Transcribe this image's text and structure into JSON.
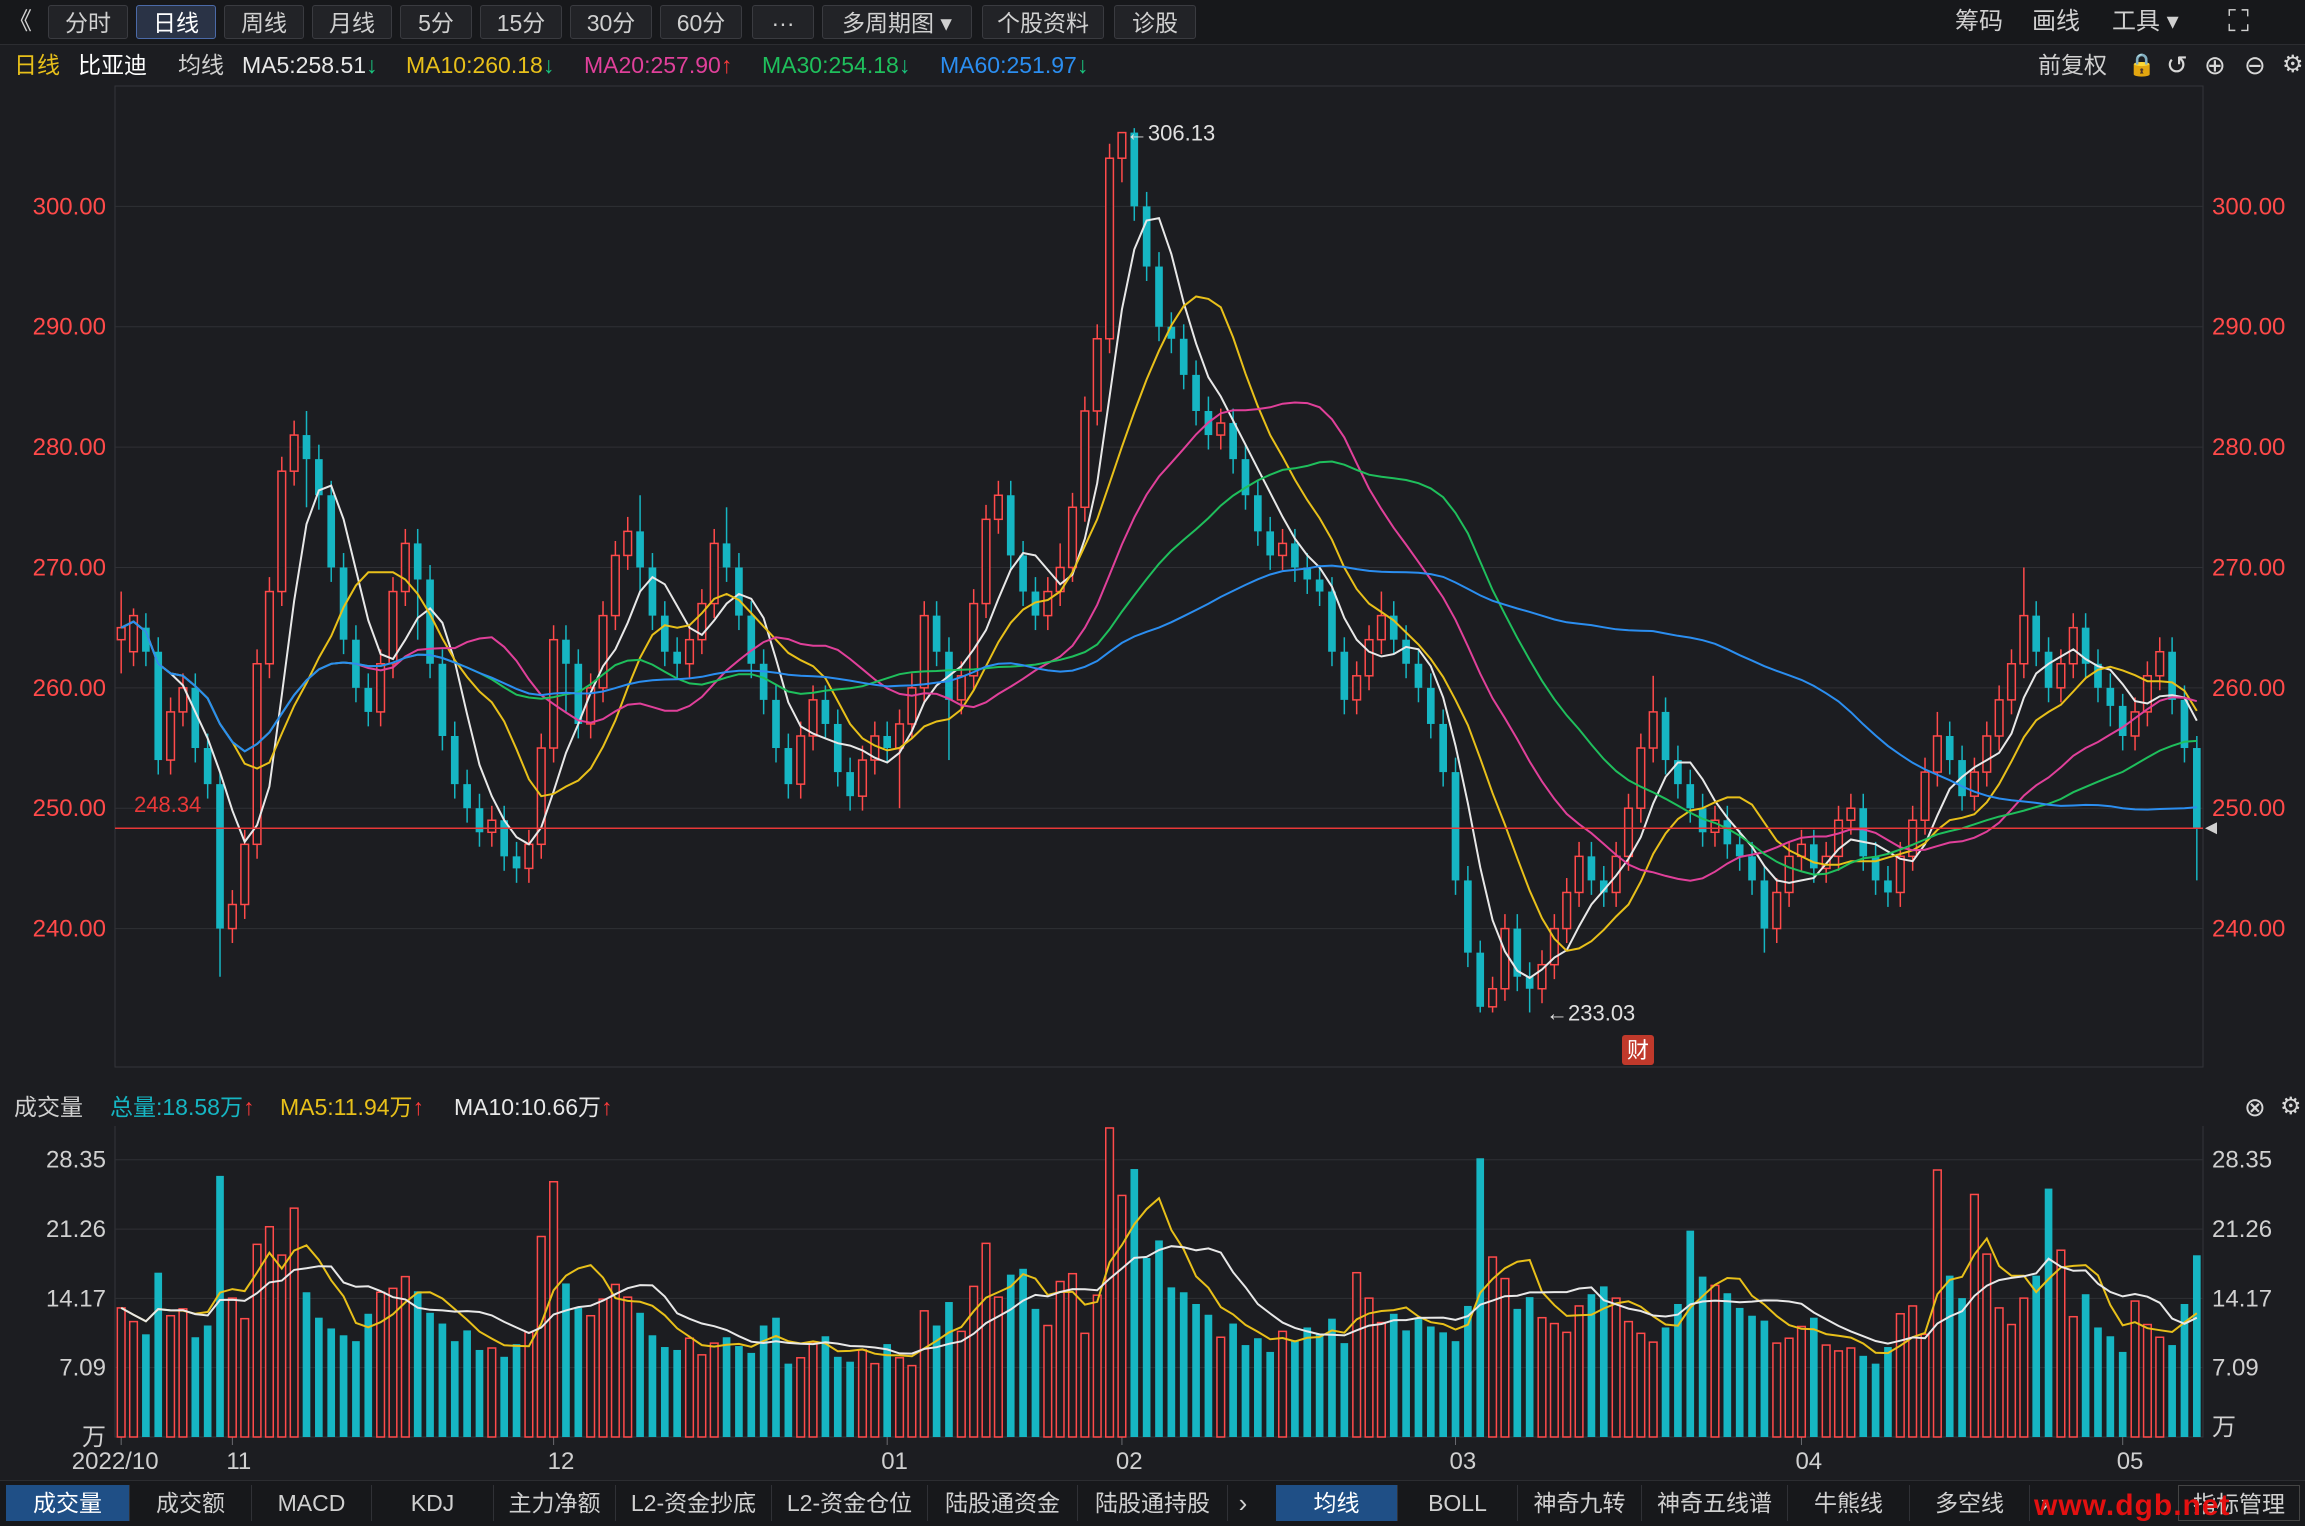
{
  "toolbar": {
    "back_glyph": "《",
    "tabs": [
      "分时",
      "日线",
      "周线",
      "月线",
      "5分",
      "15分",
      "30分",
      "60分",
      "···",
      "多周期图 ▾",
      "个股资料",
      "诊股"
    ],
    "active_tab": "日线",
    "right": [
      "筹码",
      "画线",
      "工具 ▾"
    ],
    "expand_glyph": "⛶"
  },
  "info": {
    "period": "日线",
    "stock_name": "比亚迪",
    "indicator": "均线",
    "ma": [
      {
        "label": "MA5:258.51",
        "arrow": "↓",
        "color": "#e8e8e8",
        "arrow_color": "#19c37d"
      },
      {
        "label": "MA10:260.18",
        "arrow": "↓",
        "color": "#e8c01a",
        "arrow_color": "#19c37d"
      },
      {
        "label": "MA20:257.90",
        "arrow": "↑",
        "color": "#e0409a",
        "arrow_color": "#ff3b3b"
      },
      {
        "label": "MA30:254.18",
        "arrow": "↓",
        "color": "#1fbf5c",
        "arrow_color": "#19c37d"
      },
      {
        "label": "MA60:251.97",
        "arrow": "↓",
        "color": "#2b8ef0",
        "arrow_color": "#19c37d"
      }
    ],
    "adjust": "前复权"
  },
  "volume_info": {
    "title": "成交量",
    "total": "总量:18.58万",
    "total_arrow": "↑",
    "ma5": "MA5:11.94万",
    "ma5_arrow": "↑",
    "ma10": "MA10:10.66万",
    "ma10_arrow": "↑"
  },
  "colors": {
    "up": "#ff4a4a",
    "down": "#16b6c3",
    "ma5": "#e8e8e8",
    "ma10": "#e8c01a",
    "ma20": "#e0409a",
    "ma30": "#1fbf5c",
    "ma60": "#2b8ef0",
    "price_axis": "#ff4a4a",
    "grid": "#2f3035"
  },
  "bottom_tabs_left": [
    "成交量",
    "成交额",
    "MACD",
    "KDJ",
    "主力净额",
    "L2-资金抄底",
    "L2-资金仓位",
    "陆股通资金",
    "陆股通持股"
  ],
  "bottom_tabs_right": [
    "均线",
    "BOLL",
    "神奇九转",
    "神奇五线谱",
    "牛熊线",
    "多空线"
  ],
  "bottom_active_left": "成交量",
  "bottom_active_right": "均线",
  "indicator_manage": "指标管理",
  "watermark": "www.dgb.net",
  "badge": "财",
  "chart_data": {
    "type": "candlestick",
    "price_axis": {
      "ylim": [
        228.5,
        310
      ],
      "ticks": [
        "300.00",
        "290.00",
        "280.00",
        "270.00",
        "260.00",
        "250.00",
        "240.00"
      ]
    },
    "volume_axis": {
      "ylim": [
        0,
        31.8
      ],
      "ticks": [
        "28.35",
        "21.26",
        "14.17",
        "7.09"
      ],
      "unit": "万"
    },
    "date_labels": [
      {
        "label": "2022/10",
        "index": 0
      },
      {
        "label": "11",
        "index": 9
      },
      {
        "label": "12",
        "index": 35
      },
      {
        "label": "01",
        "index": 62
      },
      {
        "label": "02",
        "index": 81
      },
      {
        "label": "03",
        "index": 108
      },
      {
        "label": "04",
        "index": 136
      },
      {
        "label": "05",
        "index": 162
      }
    ],
    "annotations": [
      {
        "label": "←306.13",
        "index": 81,
        "value": 306.13
      },
      {
        "label": "←233.03",
        "index": 115,
        "value": 233.03
      }
    ],
    "reference_line": {
      "label": "248.34",
      "value": 248.34
    },
    "candles": [
      [
        264.0,
        265.0,
        261.2,
        268.0
      ],
      [
        263.0,
        266.0,
        261.8,
        266.6
      ],
      [
        265.0,
        263.0,
        261.8,
        266.2
      ],
      [
        263.0,
        254.0,
        252.8,
        264.2
      ],
      [
        254.0,
        258.0,
        252.8,
        259.2
      ],
      [
        258.0,
        260.0,
        256.8,
        261.2
      ],
      [
        260.0,
        255.0,
        253.8,
        261.2
      ],
      [
        255.0,
        252.0,
        250.8,
        256.2
      ],
      [
        252.0,
        240.0,
        236.0,
        253.0
      ],
      [
        240.0,
        242.0,
        238.8,
        243.2
      ],
      [
        242.0,
        247.0,
        240.8,
        248.2
      ],
      [
        247.0,
        262.0,
        245.8,
        263.2
      ],
      [
        262.0,
        268.0,
        260.8,
        269.2
      ],
      [
        268.0,
        278.0,
        266.8,
        279.2
      ],
      [
        278.0,
        281.0,
        276.8,
        282.2
      ],
      [
        281.0,
        279.0,
        275.0,
        283.0
      ],
      [
        279.0,
        276.0,
        274.8,
        280.2
      ],
      [
        276.0,
        270.0,
        268.8,
        277.2
      ],
      [
        270.0,
        264.0,
        262.8,
        271.2
      ],
      [
        264.0,
        260.0,
        258.8,
        265.2
      ],
      [
        260.0,
        258.0,
        256.8,
        261.2
      ],
      [
        258.0,
        262.0,
        256.8,
        263.2
      ],
      [
        262.0,
        268.0,
        260.8,
        269.2
      ],
      [
        268.0,
        272.0,
        266.8,
        273.2
      ],
      [
        272.0,
        269.0,
        264.0,
        273.2
      ],
      [
        269.0,
        262.0,
        260.8,
        270.2
      ],
      [
        262.0,
        256.0,
        254.8,
        263.2
      ],
      [
        256.0,
        252.0,
        250.8,
        257.2
      ],
      [
        252.0,
        250.0,
        248.8,
        253.2
      ],
      [
        250.0,
        248.0,
        246.8,
        251.2
      ],
      [
        248.0,
        249.0,
        246.8,
        250.2
      ],
      [
        249.0,
        246.0,
        244.8,
        250.2
      ],
      [
        246.0,
        245.0,
        243.8,
        247.2
      ],
      [
        245.0,
        247.0,
        243.8,
        248.2
      ],
      [
        247.0,
        255.0,
        245.8,
        256.2
      ],
      [
        255.0,
        264.0,
        253.8,
        265.2
      ],
      [
        264.0,
        262.0,
        258.0,
        265.2
      ],
      [
        262.0,
        257.0,
        255.8,
        263.2
      ],
      [
        257.0,
        260.0,
        255.8,
        261.2
      ],
      [
        260.0,
        266.0,
        258.8,
        267.2
      ],
      [
        266.0,
        271.0,
        264.8,
        272.2
      ],
      [
        271.0,
        273.0,
        269.8,
        274.2
      ],
      [
        273.0,
        270.0,
        268.0,
        276.0
      ],
      [
        270.0,
        266.0,
        264.8,
        271.2
      ],
      [
        266.0,
        263.0,
        261.8,
        267.2
      ],
      [
        263.0,
        262.0,
        260.8,
        264.2
      ],
      [
        262.0,
        264.0,
        260.8,
        265.2
      ],
      [
        264.0,
        267.0,
        262.8,
        268.2
      ],
      [
        267.0,
        272.0,
        265.8,
        273.2
      ],
      [
        272.0,
        270.0,
        268.8,
        275.0
      ],
      [
        270.0,
        266.0,
        264.8,
        271.2
      ],
      [
        266.0,
        262.0,
        260.8,
        267.2
      ],
      [
        262.0,
        259.0,
        257.8,
        263.2
      ],
      [
        259.0,
        255.0,
        253.8,
        260.2
      ],
      [
        255.0,
        252.0,
        250.8,
        256.2
      ],
      [
        252.0,
        256.0,
        250.8,
        257.2
      ],
      [
        256.0,
        259.0,
        254.8,
        260.2
      ],
      [
        259.0,
        257.0,
        255.8,
        260.2
      ],
      [
        257.0,
        253.0,
        251.8,
        258.2
      ],
      [
        253.0,
        251.0,
        249.8,
        254.2
      ],
      [
        251.0,
        254.0,
        249.8,
        255.2
      ],
      [
        254.0,
        256.0,
        252.8,
        257.2
      ],
      [
        256.0,
        255.0,
        253.8,
        257.2
      ],
      [
        255.0,
        257.0,
        250.0,
        258.2
      ],
      [
        257.0,
        260.0,
        255.8,
        261.2
      ],
      [
        260.0,
        266.0,
        258.8,
        267.2
      ],
      [
        266.0,
        263.0,
        261.8,
        267.2
      ],
      [
        263.0,
        259.0,
        254.0,
        264.2
      ],
      [
        259.0,
        261.0,
        257.8,
        262.2
      ],
      [
        261.0,
        267.0,
        259.8,
        268.2
      ],
      [
        267.0,
        274.0,
        265.8,
        275.2
      ],
      [
        274.0,
        276.0,
        272.8,
        277.2
      ],
      [
        276.0,
        271.0,
        269.8,
        277.2
      ],
      [
        271.0,
        268.0,
        266.8,
        272.2
      ],
      [
        268.0,
        266.0,
        264.8,
        269.2
      ],
      [
        266.0,
        268.0,
        264.8,
        269.2
      ],
      [
        268.0,
        270.0,
        266.8,
        272.0
      ],
      [
        270.0,
        275.0,
        268.8,
        276.2
      ],
      [
        275.0,
        283.0,
        273.8,
        284.2
      ],
      [
        283.0,
        289.0,
        281.8,
        290.2
      ],
      [
        289.0,
        304.0,
        287.8,
        305.2
      ],
      [
        304.0,
        306.13,
        302.0,
        306.13
      ],
      [
        306.13,
        300.0,
        298.8,
        306.5
      ],
      [
        300.0,
        295.0,
        293.8,
        301.2
      ],
      [
        295.0,
        290.0,
        288.8,
        296.2
      ],
      [
        290.0,
        289.0,
        287.8,
        291.2
      ],
      [
        289.0,
        286.0,
        284.8,
        290.2
      ],
      [
        286.0,
        283.0,
        281.8,
        287.2
      ],
      [
        283.0,
        281.0,
        279.8,
        284.2
      ],
      [
        281.0,
        282.0,
        279.8,
        283.2
      ],
      [
        282.0,
        279.0,
        277.8,
        283.2
      ],
      [
        279.0,
        276.0,
        274.8,
        280.2
      ],
      [
        276.0,
        273.0,
        271.8,
        277.2
      ],
      [
        273.0,
        271.0,
        269.8,
        274.2
      ],
      [
        271.0,
        272.0,
        269.8,
        273.2
      ],
      [
        272.0,
        270.0,
        268.8,
        273.2
      ],
      [
        270.0,
        269.0,
        267.8,
        271.2
      ],
      [
        269.0,
        268.0,
        266.8,
        270.2
      ],
      [
        268.0,
        263.0,
        261.8,
        269.2
      ],
      [
        263.0,
        259.0,
        257.8,
        264.2
      ],
      [
        259.0,
        261.0,
        257.8,
        262.2
      ],
      [
        261.0,
        264.0,
        259.8,
        265.2
      ],
      [
        264.0,
        266.0,
        262.8,
        268.0
      ],
      [
        266.0,
        264.0,
        262.8,
        267.2
      ],
      [
        264.0,
        262.0,
        260.8,
        265.2
      ],
      [
        262.0,
        260.0,
        258.8,
        263.2
      ],
      [
        260.0,
        257.0,
        255.8,
        261.2
      ],
      [
        257.0,
        253.0,
        251.8,
        258.2
      ],
      [
        253.0,
        244.0,
        242.8,
        254.2
      ],
      [
        244.0,
        238.0,
        236.8,
        245.2
      ],
      [
        238.0,
        233.5,
        233.03,
        239.0
      ],
      [
        233.5,
        235.0,
        233.03,
        236.0
      ],
      [
        235.0,
        240.0,
        234.0,
        241.2
      ],
      [
        240.0,
        236.0,
        234.8,
        241.2
      ],
      [
        236.0,
        235.0,
        233.03,
        237.2
      ],
      [
        235.0,
        237.0,
        233.8,
        238.2
      ],
      [
        237.0,
        240.0,
        235.8,
        241.2
      ],
      [
        240.0,
        243.0,
        238.8,
        244.2
      ],
      [
        243.0,
        246.0,
        241.8,
        247.2
      ],
      [
        246.0,
        244.0,
        242.8,
        247.2
      ],
      [
        244.0,
        243.0,
        241.8,
        245.2
      ],
      [
        243.0,
        246.0,
        241.8,
        247.2
      ],
      [
        246.0,
        250.0,
        244.8,
        251.2
      ],
      [
        250.0,
        255.0,
        248.8,
        256.2
      ],
      [
        255.0,
        258.0,
        253.8,
        261.0
      ],
      [
        258.0,
        254.0,
        252.8,
        259.2
      ],
      [
        254.0,
        252.0,
        250.8,
        255.2
      ],
      [
        252.0,
        250.0,
        248.8,
        253.2
      ],
      [
        250.0,
        248.0,
        246.8,
        251.2
      ],
      [
        248.0,
        249.0,
        246.8,
        250.2
      ],
      [
        249.0,
        247.0,
        245.8,
        250.2
      ],
      [
        247.0,
        246.0,
        244.8,
        248.2
      ],
      [
        246.0,
        244.0,
        242.8,
        247.2
      ],
      [
        244.0,
        240.0,
        238.0,
        245.2
      ],
      [
        240.0,
        243.0,
        238.8,
        244.2
      ],
      [
        243.0,
        246.0,
        241.8,
        247.2
      ],
      [
        246.0,
        247.0,
        244.8,
        248.2
      ],
      [
        247.0,
        245.0,
        243.8,
        248.2
      ],
      [
        245.0,
        246.0,
        243.8,
        247.2
      ],
      [
        246.0,
        249.0,
        244.8,
        250.2
      ],
      [
        249.0,
        250.0,
        247.8,
        251.2
      ],
      [
        250.0,
        246.0,
        244.8,
        251.2
      ],
      [
        246.0,
        244.0,
        242.8,
        247.2
      ],
      [
        244.0,
        243.0,
        241.8,
        245.2
      ],
      [
        243.0,
        246.0,
        241.8,
        247.2
      ],
      [
        246.0,
        249.0,
        244.8,
        250.2
      ],
      [
        249.0,
        253.0,
        247.8,
        254.2
      ],
      [
        253.0,
        256.0,
        251.8,
        258.0
      ],
      [
        256.0,
        254.0,
        252.8,
        257.2
      ],
      [
        254.0,
        251.0,
        249.8,
        255.2
      ],
      [
        251.0,
        253.0,
        249.8,
        254.2
      ],
      [
        253.0,
        256.0,
        251.8,
        257.2
      ],
      [
        256.0,
        259.0,
        254.8,
        260.2
      ],
      [
        259.0,
        262.0,
        257.8,
        263.2
      ],
      [
        262.0,
        266.0,
        260.8,
        270.0
      ],
      [
        266.0,
        263.0,
        261.8,
        267.2
      ],
      [
        263.0,
        260.0,
        258.8,
        264.2
      ],
      [
        260.0,
        262.0,
        258.8,
        263.2
      ],
      [
        262.0,
        265.0,
        260.8,
        266.2
      ],
      [
        265.0,
        262.0,
        260.8,
        266.2
      ],
      [
        262.0,
        260.0,
        258.8,
        263.2
      ],
      [
        260.0,
        258.5,
        256.8,
        261.2
      ],
      [
        258.5,
        256.0,
        254.8,
        259.5
      ],
      [
        256.0,
        258.0,
        254.8,
        259.2
      ],
      [
        258.0,
        261.0,
        256.8,
        262.2
      ],
      [
        261.0,
        263.0,
        259.8,
        264.2
      ],
      [
        263.0,
        259.0,
        257.8,
        264.2
      ],
      [
        259.0,
        255.0,
        253.8,
        260.2
      ],
      [
        255.0,
        248.34,
        244.0,
        256.0
      ]
    ],
    "volumes": [
      13.2,
      11.8,
      10.5,
      16.8,
      12.4,
      13.1,
      10.2,
      11.4,
      26.7,
      14.2,
      12.1,
      19.7,
      21.5,
      18.6,
      23.4,
      14.8,
      12.2,
      11.1,
      10.4,
      9.8,
      12.6,
      14.8,
      15.2,
      16.4,
      14.9,
      12.7,
      11.6,
      9.8,
      10.9,
      8.9,
      9.1,
      8.2,
      9.5,
      10.7,
      20.5,
      26.1,
      15.7,
      13.2,
      12.4,
      14.1,
      15.6,
      14.3,
      12.7,
      10.4,
      9.2,
      8.9,
      10.1,
      8.4,
      9.6,
      10.2,
      9.3,
      8.6,
      11.4,
      12.2,
      7.5,
      8.1,
      9.7,
      10.3,
      8.2,
      7.7,
      8.9,
      7.5,
      9.5,
      8.1,
      7.3,
      12.9,
      11.4,
      13.8,
      10.8,
      15.4,
      19.8,
      14.3,
      16.6,
      17.2,
      13.1,
      11.4,
      15.9,
      16.7,
      10.6,
      14.5,
      31.6,
      24.7,
      27.4,
      18.3,
      20.1,
      15.3,
      14.8,
      13.6,
      12.5,
      10.2,
      11.6,
      9.4,
      10.1,
      8.7,
      10.8,
      9.9,
      11.2,
      10.5,
      12.1,
      9.6,
      16.8,
      14.2,
      11.7,
      12.6,
      10.9,
      12.2,
      11.3,
      10.7,
      9.8,
      13.4,
      28.5,
      18.4,
      16.2,
      13.1,
      14.3,
      12.2,
      11.6,
      10.7,
      13.4,
      14.6,
      15.4,
      14.2,
      11.8,
      10.6,
      9.7,
      11.2,
      13.6,
      21.1,
      16.4,
      15.5,
      14.7,
      13.2,
      12.4,
      11.9,
      9.6,
      10.1,
      11.3,
      12.2,
      9.4,
      8.8,
      9.1,
      8.3,
      7.5,
      9.2,
      12.6,
      13.4,
      10.5,
      27.3,
      16.5,
      14.2,
      24.8,
      18.7,
      13.2,
      11.5,
      14.2,
      16.5,
      25.4,
      19.1,
      12.3,
      14.6,
      11.2,
      10.3,
      8.7,
      13.9,
      11.5,
      10.2,
      9.4,
      13.6,
      18.58
    ]
  }
}
